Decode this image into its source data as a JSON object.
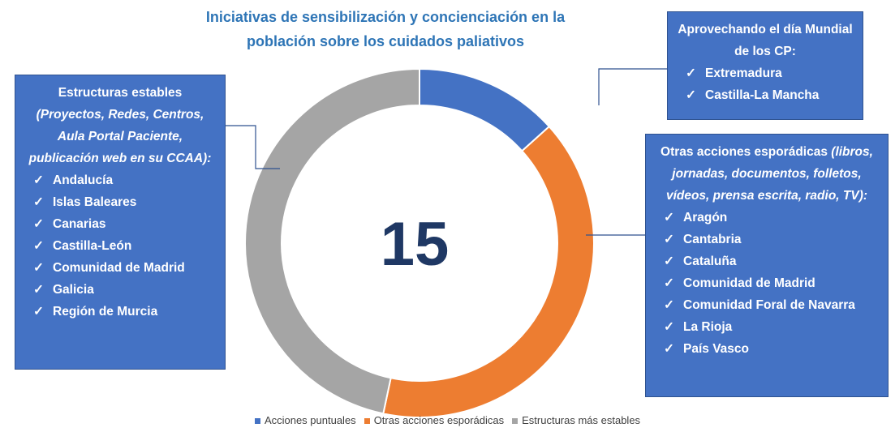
{
  "chart_data": {
    "type": "donut",
    "title": "Iniciativas de sensibilización y concienciación  en la población sobre los cuidados paliativos",
    "total": 15,
    "categories": [
      "Acciones puntuales",
      "Otras acciones esporádicas",
      "Estructuras más estables"
    ],
    "values": [
      2,
      6,
      7
    ],
    "colors": [
      "#4472c4",
      "#ed7d31",
      "#a5a5a5"
    ],
    "legend": "bottom",
    "annotations": [
      {
        "heading": "Aprovechando el día Mundial de los CP:",
        "detail": null,
        "marker": "✓",
        "items": [
          "Extremadura",
          "Castilla-La Mancha"
        ]
      },
      {
        "heading": "Otras acciones esporádicas",
        "detail": "(libros, jornadas, documentos, folletos, vídeos, prensa escrita, radio, TV):",
        "marker": "✓",
        "items": [
          "Aragón",
          "Cantabria",
          "Cataluña",
          "Comunidad de Madrid",
          "Comunidad Foral de Navarra",
          "La Rioja",
          "País Vasco"
        ]
      },
      {
        "heading": "Estructuras estables",
        "detail": "(Proyectos, Redes, Centros, Aula Portal Paciente, publicación web en su CCAA):",
        "marker": "✓",
        "items": [
          "Andalucía",
          "Islas Baleares",
          "Canarias",
          "Castilla-León",
          "Comunidad de Madrid",
          "Galicia",
          "Región de Murcia"
        ]
      }
    ]
  }
}
